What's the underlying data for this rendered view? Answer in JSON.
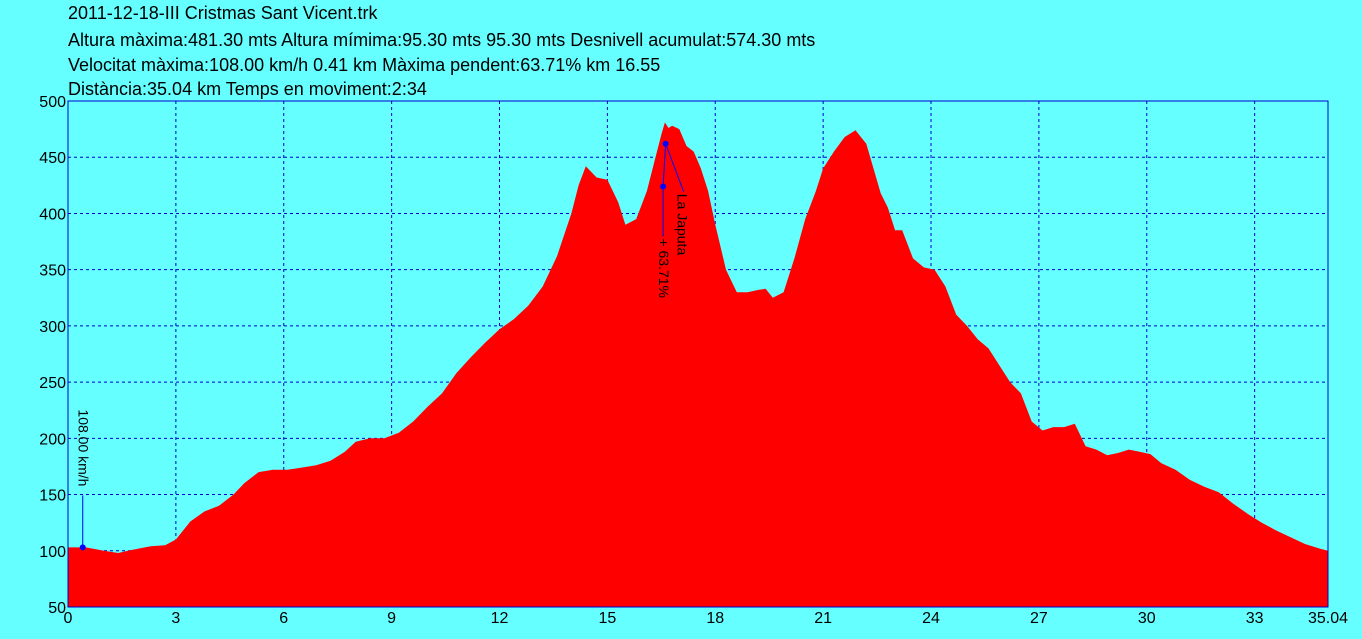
{
  "header": {
    "line1": "2011-12-18-III Cristmas Sant Vicent.trk",
    "line2": "Altura màxima:481.30 mts Altura mímima:95.30 mts 95.30 mts Desnivell acumulat:574.30 mts",
    "line3": "Velocitat màxima:108.00 km/h 0.41 km Màxima pendent:63.71% km 16.55",
    "line4": "Distància:35.04 km Temps en moviment:2:34"
  },
  "colors": {
    "background": "#66ffff",
    "fill": "#ff0000",
    "grid": "#0000cc",
    "marker": "#0000ff"
  },
  "chart_data": {
    "type": "area",
    "xlabel": "",
    "ylabel": "",
    "xlim": [
      0,
      35.04
    ],
    "ylim": [
      50,
      500
    ],
    "grid": true,
    "x_ticks": [
      "0",
      "3",
      "6",
      "9",
      "12",
      "15",
      "18",
      "21",
      "24",
      "27",
      "30",
      "33",
      "35.04"
    ],
    "y_ticks": [
      "50",
      "100",
      "150",
      "200",
      "250",
      "300",
      "350",
      "400",
      "450",
      "500"
    ],
    "x": [
      0,
      0.5,
      1.0,
      1.4,
      1.8,
      2.3,
      2.7,
      3.0,
      3.4,
      3.8,
      4.2,
      4.6,
      4.9,
      5.3,
      5.7,
      6.1,
      6.5,
      6.9,
      7.3,
      7.7,
      8.0,
      8.4,
      8.8,
      9.2,
      9.6,
      10.0,
      10.4,
      10.8,
      11.2,
      11.6,
      12.0,
      12.4,
      12.8,
      13.2,
      13.6,
      14.0,
      14.2,
      14.4,
      14.7,
      15.0,
      15.3,
      15.5,
      15.8,
      16.1,
      16.3,
      16.5,
      16.6,
      16.7,
      16.8,
      17.0,
      17.2,
      17.4,
      17.6,
      17.8,
      18.0,
      18.3,
      18.6,
      18.9,
      19.2,
      19.4,
      19.6,
      19.9,
      20.2,
      20.5,
      20.8,
      21.0,
      21.3,
      21.6,
      21.9,
      22.2,
      22.4,
      22.6,
      22.8,
      23.0,
      23.2,
      23.5,
      23.8,
      24.1,
      24.4,
      24.7,
      25.0,
      25.3,
      25.6,
      25.9,
      26.2,
      26.5,
      26.8,
      27.1,
      27.4,
      27.7,
      28.0,
      28.3,
      28.6,
      28.9,
      29.2,
      29.5,
      29.8,
      30.1,
      30.4,
      30.8,
      31.2,
      31.6,
      32.0,
      32.4,
      32.8,
      33.2,
      33.6,
      34.0,
      34.4,
      34.8,
      35.04
    ],
    "y": [
      103,
      103,
      100,
      98,
      101,
      104,
      105,
      110,
      126,
      135,
      140,
      150,
      160,
      170,
      172,
      172,
      174,
      176,
      180,
      188,
      197,
      200,
      200,
      205,
      215,
      228,
      240,
      258,
      272,
      285,
      297,
      306,
      318,
      335,
      362,
      400,
      425,
      442,
      432,
      430,
      410,
      390,
      395,
      420,
      445,
      470,
      481,
      476,
      478,
      475,
      460,
      455,
      440,
      420,
      390,
      350,
      330,
      330,
      332,
      333,
      325,
      330,
      360,
      395,
      420,
      440,
      455,
      468,
      474,
      462,
      440,
      418,
      405,
      385,
      385,
      360,
      352,
      350,
      335,
      310,
      300,
      288,
      280,
      265,
      250,
      240,
      215,
      207,
      210,
      210,
      213,
      193,
      190,
      185,
      187,
      190,
      188,
      186,
      178,
      172,
      163,
      157,
      152,
      142,
      133,
      125,
      118,
      112,
      106,
      102,
      100
    ]
  },
  "annotations": {
    "speed_label": "108.00 km/h",
    "speed_marker": {
      "x": 0.41,
      "y": 103
    },
    "slope_label": "+ 63.71%",
    "slope_marker_low": {
      "x": 16.55,
      "y": 424
    },
    "slope_marker_high": {
      "x": 16.62,
      "y": 462
    },
    "waypoint_label": "La Japuta"
  }
}
